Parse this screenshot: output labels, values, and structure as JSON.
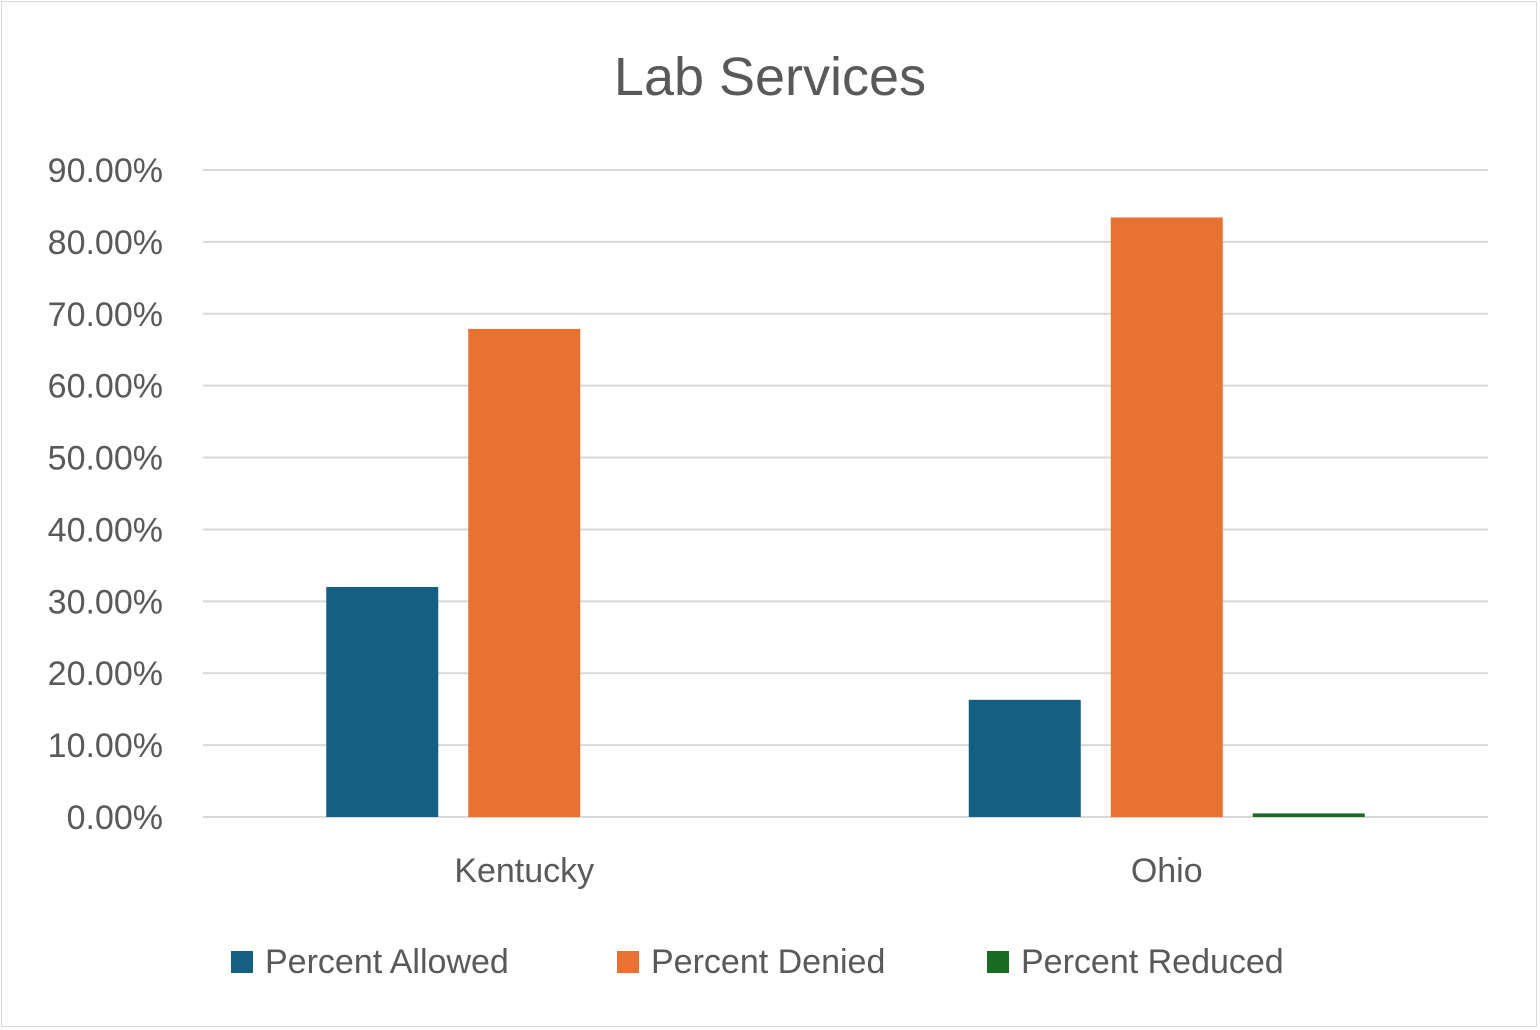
{
  "chart_data": {
    "type": "bar",
    "title": "Lab Services",
    "categories": [
      "Kentucky",
      "Ohio"
    ],
    "series": [
      {
        "name": "Percent Allowed",
        "values": [
          32.0,
          16.3
        ],
        "color": "#156082"
      },
      {
        "name": "Percent Denied",
        "values": [
          67.9,
          83.4
        ],
        "color": "#E97132"
      },
      {
        "name": "Percent Reduced",
        "values": [
          0.0,
          0.5
        ],
        "color": "#196B24"
      }
    ],
    "ylim": [
      0,
      90
    ],
    "yticks": [
      "0.00%",
      "10.00%",
      "20.00%",
      "30.00%",
      "40.00%",
      "50.00%",
      "60.00%",
      "70.00%",
      "80.00%",
      "90.00%"
    ],
    "grid": true,
    "legend": "bottom",
    "xlabel": "",
    "ylabel": ""
  }
}
